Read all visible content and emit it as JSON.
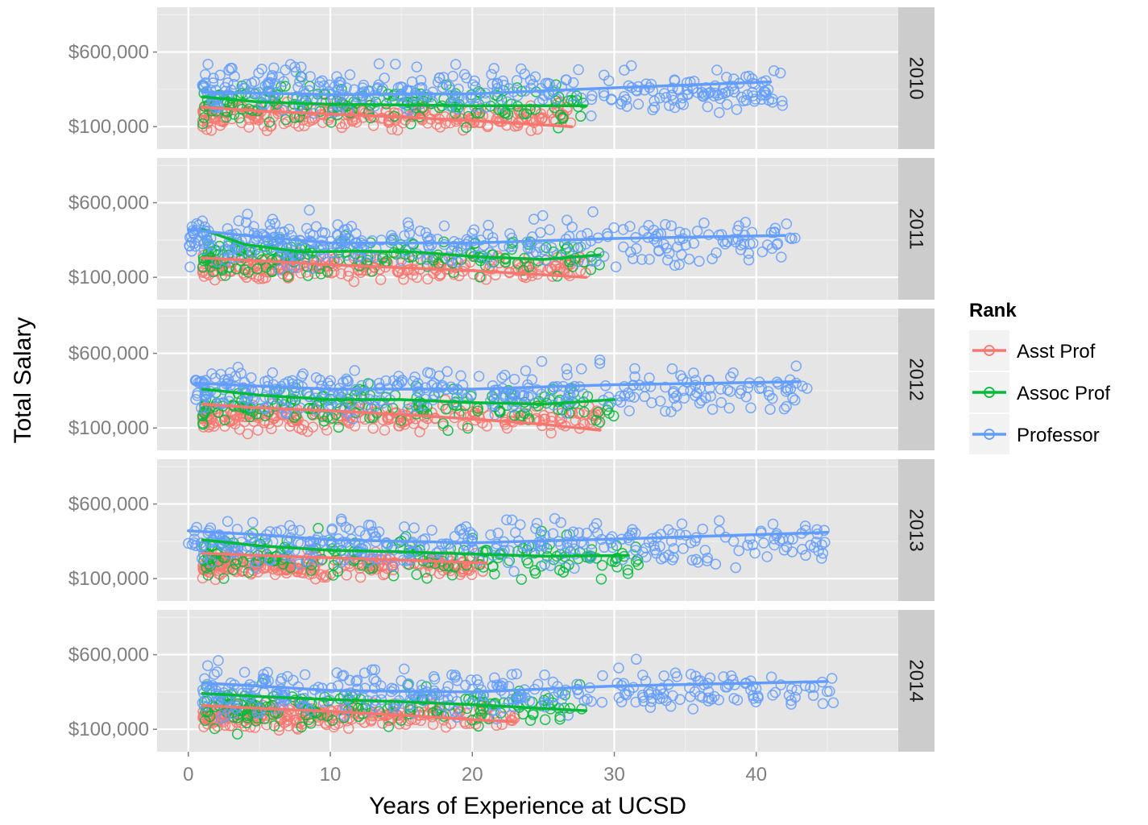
{
  "chart_data": {
    "type": "scatter",
    "xlabel": "Years of Experience at UCSD",
    "ylabel": "Total Salary",
    "xlim": [
      -2.2,
      50
    ],
    "ylim": [
      -50000,
      900000
    ],
    "x_ticks": [
      0,
      10,
      20,
      30,
      40
    ],
    "x_tick_labels": [
      "0",
      "10",
      "20",
      "30",
      "40"
    ],
    "y_ticks": [
      100000,
      600000
    ],
    "y_tick_labels": [
      "$100,000",
      "$600,000"
    ],
    "grid": true,
    "legend": {
      "title": "Rank",
      "placement": "right",
      "entries": [
        {
          "name": "Asst Prof",
          "color": "#F8766D"
        },
        {
          "name": "Assoc Prof",
          "color": "#00BA38"
        },
        {
          "name": "Professor",
          "color": "#619CFF"
        }
      ]
    },
    "facets": [
      {
        "label": "2010",
        "clouds": [
          {
            "series": "Asst Prof",
            "n": 240,
            "x_range": [
              1,
              27
            ],
            "mean": 170000,
            "spread": 70000
          },
          {
            "series": "Assoc Prof",
            "n": 170,
            "x_range": [
              1,
              28
            ],
            "mean": 260000,
            "spread": 110000
          },
          {
            "series": "Professor",
            "n": 330,
            "x_range": [
              1,
              42
            ],
            "mean": 340000,
            "spread": 120000
          }
        ],
        "trend_lines": [
          {
            "series": "Asst Prof",
            "points": [
              [
                1,
                230000
              ],
              [
                5,
                205000
              ],
              [
                10,
                185000
              ],
              [
                15,
                165000
              ],
              [
                20,
                140000
              ],
              [
                27,
                100000
              ]
            ]
          },
          {
            "series": "Assoc Prof",
            "points": [
              [
                1,
                300000
              ],
              [
                5,
                265000
              ],
              [
                10,
                250000
              ],
              [
                15,
                245000
              ],
              [
                20,
                240000
              ],
              [
                28,
                240000
              ]
            ]
          },
          {
            "series": "Professor",
            "points": [
              [
                1,
                330000
              ],
              [
                5,
                325000
              ],
              [
                10,
                315000
              ],
              [
                20,
                320000
              ],
              [
                30,
                360000
              ],
              [
                41,
                400000
              ]
            ]
          }
        ]
      },
      {
        "label": "2011",
        "clouds": [
          {
            "series": "Asst Prof",
            "n": 240,
            "x_range": [
              1,
              28
            ],
            "mean": 170000,
            "spread": 70000
          },
          {
            "series": "Assoc Prof",
            "n": 170,
            "x_range": [
              1,
              29
            ],
            "mean": 240000,
            "spread": 110000
          },
          {
            "series": "Professor",
            "n": 330,
            "x_range": [
              0,
              43
            ],
            "mean": 340000,
            "spread": 120000
          }
        ],
        "trend_lines": [
          {
            "series": "Asst Prof",
            "points": [
              [
                1,
                230000
              ],
              [
                5,
                210000
              ],
              [
                10,
                185000
              ],
              [
                15,
                165000
              ],
              [
                20,
                145000
              ],
              [
                28,
                100000
              ]
            ]
          },
          {
            "series": "Assoc Prof",
            "points": [
              [
                1,
                420000
              ],
              [
                4,
                320000
              ],
              [
                8,
                270000
              ],
              [
                12,
                275000
              ],
              [
                16,
                270000
              ],
              [
                20,
                240000
              ],
              [
                25,
                220000
              ],
              [
                29,
                250000
              ]
            ]
          },
          {
            "series": "Professor",
            "points": [
              [
                0,
                420000
              ],
              [
                3,
                390000
              ],
              [
                10,
                330000
              ],
              [
                20,
                330000
              ],
              [
                30,
                360000
              ],
              [
                42,
                380000
              ]
            ]
          }
        ]
      },
      {
        "label": "2012",
        "clouds": [
          {
            "series": "Asst Prof",
            "n": 240,
            "x_range": [
              1,
              29
            ],
            "mean": 170000,
            "spread": 70000
          },
          {
            "series": "Assoc Prof",
            "n": 170,
            "x_range": [
              1,
              30
            ],
            "mean": 250000,
            "spread": 110000
          },
          {
            "series": "Professor",
            "n": 330,
            "x_range": [
              0.5,
              44
            ],
            "mean": 350000,
            "spread": 120000
          }
        ],
        "trend_lines": [
          {
            "series": "Asst Prof",
            "points": [
              [
                1,
                260000
              ],
              [
                5,
                235000
              ],
              [
                10,
                215000
              ],
              [
                15,
                190000
              ],
              [
                20,
                160000
              ],
              [
                25,
                125000
              ],
              [
                29,
                85000
              ]
            ]
          },
          {
            "series": "Assoc Prof",
            "points": [
              [
                1,
                360000
              ],
              [
                5,
                320000
              ],
              [
                10,
                290000
              ],
              [
                15,
                290000
              ],
              [
                20,
                270000
              ],
              [
                25,
                260000
              ],
              [
                30,
                290000
              ]
            ]
          },
          {
            "series": "Professor",
            "points": [
              [
                0.5,
                400000
              ],
              [
                5,
                380000
              ],
              [
                10,
                360000
              ],
              [
                20,
                360000
              ],
              [
                30,
                390000
              ],
              [
                43,
                410000
              ]
            ]
          }
        ]
      },
      {
        "label": "2013",
        "clouds": [
          {
            "series": "Asst Prof",
            "n": 240,
            "x_range": [
              1,
              21
            ],
            "mean": 190000,
            "spread": 70000
          },
          {
            "series": "Assoc Prof",
            "n": 170,
            "x_range": [
              1,
              32
            ],
            "mean": 240000,
            "spread": 110000
          },
          {
            "series": "Professor",
            "n": 330,
            "x_range": [
              0,
              45
            ],
            "mean": 340000,
            "spread": 120000
          }
        ],
        "trend_lines": [
          {
            "series": "Asst Prof",
            "points": [
              [
                1,
                270000
              ],
              [
                5,
                255000
              ],
              [
                10,
                240000
              ],
              [
                15,
                225000
              ],
              [
                21,
                205000
              ]
            ]
          },
          {
            "series": "Assoc Prof",
            "points": [
              [
                1,
                360000
              ],
              [
                5,
                320000
              ],
              [
                10,
                290000
              ],
              [
                15,
                280000
              ],
              [
                20,
                265000
              ],
              [
                25,
                250000
              ],
              [
                31,
                255000
              ]
            ]
          },
          {
            "series": "Professor",
            "points": [
              [
                0,
                420000
              ],
              [
                5,
                395000
              ],
              [
                10,
                360000
              ],
              [
                20,
                340000
              ],
              [
                30,
                365000
              ],
              [
                45,
                410000
              ]
            ]
          }
        ]
      },
      {
        "label": "2014",
        "clouds": [
          {
            "series": "Asst Prof",
            "n": 240,
            "x_range": [
              1,
              23
            ],
            "mean": 190000,
            "spread": 70000
          },
          {
            "series": "Assoc Prof",
            "n": 170,
            "x_range": [
              1,
              28
            ],
            "mean": 250000,
            "spread": 110000
          },
          {
            "series": "Professor",
            "n": 330,
            "x_range": [
              1,
              46
            ],
            "mean": 350000,
            "spread": 120000
          }
        ],
        "trend_lines": [
          {
            "series": "Asst Prof",
            "points": [
              [
                1,
                260000
              ],
              [
                5,
                240000
              ],
              [
                10,
                220000
              ],
              [
                15,
                195000
              ],
              [
                20,
                165000
              ],
              [
                23,
                150000
              ]
            ]
          },
          {
            "series": "Assoc Prof",
            "points": [
              [
                1,
                340000
              ],
              [
                5,
                320000
              ],
              [
                10,
                300000
              ],
              [
                15,
                285000
              ],
              [
                20,
                265000
              ],
              [
                28,
                225000
              ]
            ]
          },
          {
            "series": "Professor",
            "points": [
              [
                1,
                410000
              ],
              [
                5,
                390000
              ],
              [
                10,
                360000
              ],
              [
                20,
                350000
              ],
              [
                30,
                390000
              ],
              [
                45,
                420000
              ]
            ]
          }
        ]
      }
    ]
  }
}
